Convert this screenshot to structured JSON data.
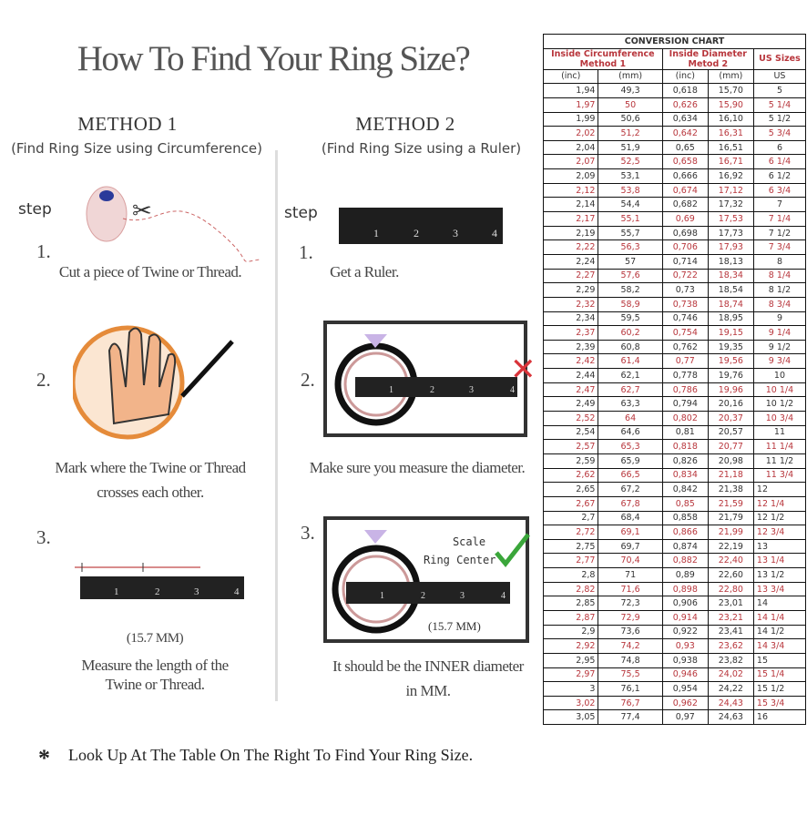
{
  "title": "How To Find Your Ring Size?",
  "method1": {
    "heading": "METHOD 1",
    "subtitle": "(Find Ring Size using Circumference)",
    "step_label": "step",
    "steps": [
      {
        "num": "1.",
        "text": "Cut a piece of  Twine or Thread."
      },
      {
        "num": "2.",
        "text1": "Mark where the Twine or Thread",
        "text2": "crosses each other."
      },
      {
        "num": "3.",
        "measure": "(15.7 MM)",
        "text1": "Measure the length of the",
        "text2": "Twine or Thread."
      }
    ]
  },
  "method2": {
    "heading": "METHOD 2",
    "subtitle": "(Find Ring Size using a Ruler)",
    "step_label": "step",
    "steps": [
      {
        "num": "1.",
        "text": "Get a Ruler."
      },
      {
        "num": "2.",
        "text": "Make sure you measure the diameter."
      },
      {
        "num": "3.",
        "scale_label1": "Scale",
        "scale_label2": "Ring Center",
        "measure": "(15.7 MM)",
        "text1": "It should be the INNER diameter",
        "text2": "in MM."
      }
    ]
  },
  "ruler_ticks": [
    "1",
    "2",
    "3",
    "4"
  ],
  "footer": {
    "star": "*",
    "text": "Look Up At The Table On The Right To Find Your Ring Size."
  },
  "colors": {
    "red": "#b8363c",
    "check": "#3aa63a",
    "cross": "#d9343a"
  },
  "table": {
    "title": "CONVERSION CHART",
    "group1": "Inside Circumference",
    "group1_sub": "Method 1",
    "group2": "Inside Diameter",
    "group2_sub": "Metod 2",
    "group3": "US Sizes",
    "columns": [
      "(inc)",
      "(mm)",
      "(inc)",
      "(mm)",
      "US"
    ],
    "rows": [
      [
        "1,94",
        "49,3",
        "0,618",
        "15,70",
        "5"
      ],
      [
        "1,97",
        "50",
        "0,626",
        "15,90",
        "5 1/4"
      ],
      [
        "1,99",
        "50,6",
        "0,634",
        "16,10",
        "5 1/2"
      ],
      [
        "2,02",
        "51,2",
        "0,642",
        "16,31",
        "5 3/4"
      ],
      [
        "2,04",
        "51,9",
        "0,65",
        "16,51",
        "6"
      ],
      [
        "2,07",
        "52,5",
        "0,658",
        "16,71",
        "6 1/4"
      ],
      [
        "2,09",
        "53,1",
        "0,666",
        "16,92",
        "6 1/2"
      ],
      [
        "2,12",
        "53,8",
        "0,674",
        "17,12",
        "6 3/4"
      ],
      [
        "2,14",
        "54,4",
        "0,682",
        "17,32",
        "7"
      ],
      [
        "2,17",
        "55,1",
        "0,69",
        "17,53",
        "7 1/4"
      ],
      [
        "2,19",
        "55,7",
        "0,698",
        "17,73",
        "7 1/2"
      ],
      [
        "2,22",
        "56,3",
        "0,706",
        "17,93",
        "7 3/4"
      ],
      [
        "2,24",
        "57",
        "0,714",
        "18,13",
        "8"
      ],
      [
        "2,27",
        "57,6",
        "0,722",
        "18,34",
        "8 1/4"
      ],
      [
        "2,29",
        "58,2",
        "0,73",
        "18,54",
        "8 1/2"
      ],
      [
        "2,32",
        "58,9",
        "0,738",
        "18,74",
        "8 3/4"
      ],
      [
        "2,34",
        "59,5",
        "0,746",
        "18,95",
        "9"
      ],
      [
        "2,37",
        "60,2",
        "0,754",
        "19,15",
        "9 1/4"
      ],
      [
        "2,39",
        "60,8",
        "0,762",
        "19,35",
        "9 1/2"
      ],
      [
        "2,42",
        "61,4",
        "0,77",
        "19,56",
        "9 3/4"
      ],
      [
        "2,44",
        "62,1",
        "0,778",
        "19,76",
        "10"
      ],
      [
        "2,47",
        "62,7",
        "0,786",
        "19,96",
        "10 1/4"
      ],
      [
        "2,49",
        "63,3",
        "0,794",
        "20,16",
        "10 1/2"
      ],
      [
        "2,52",
        "64",
        "0,802",
        "20,37",
        "10 3/4"
      ],
      [
        "2,54",
        "64,6",
        "0,81",
        "20,57",
        "11"
      ],
      [
        "2,57",
        "65,3",
        "0,818",
        "20,77",
        "11 1/4"
      ],
      [
        "2,59",
        "65,9",
        "0,826",
        "20,98",
        "11 1/2"
      ],
      [
        "2,62",
        "66,5",
        "0,834",
        "21,18",
        "11 3/4"
      ],
      [
        "2,65",
        "67,2",
        "0,842",
        "21,38",
        "12"
      ],
      [
        "2,67",
        "67,8",
        "0,85",
        "21,59",
        "12 1/4"
      ],
      [
        "2,7",
        "68,4",
        "0,858",
        "21,79",
        "12 1/2"
      ],
      [
        "2,72",
        "69,1",
        "0,866",
        "21,99",
        "12 3/4"
      ],
      [
        "2,75",
        "69,7",
        "0,874",
        "22,19",
        "13"
      ],
      [
        "2,77",
        "70,4",
        "0,882",
        "22,40",
        "13 1/4"
      ],
      [
        "2,8",
        "71",
        "0,89",
        "22,60",
        "13 1/2"
      ],
      [
        "2,82",
        "71,6",
        "0,898",
        "22,80",
        "13 3/4"
      ],
      [
        "2,85",
        "72,3",
        "0,906",
        "23,01",
        "14"
      ],
      [
        "2,87",
        "72,9",
        "0,914",
        "23,21",
        "14 1/4"
      ],
      [
        "2,9",
        "73,6",
        "0,922",
        "23,41",
        "14 1/2"
      ],
      [
        "2,92",
        "74,2",
        "0,93",
        "23,62",
        "14 3/4"
      ],
      [
        "2,95",
        "74,8",
        "0,938",
        "23,82",
        "15"
      ],
      [
        "2,97",
        "75,5",
        "0,946",
        "24,02",
        "15 1/4"
      ],
      [
        "3",
        "76,1",
        "0,954",
        "24,22",
        "15 1/2"
      ],
      [
        "3,02",
        "76,7",
        "0,962",
        "24,43",
        "15 3/4"
      ],
      [
        "3,05",
        "77,4",
        "0,97",
        "24,63",
        "16"
      ]
    ]
  }
}
